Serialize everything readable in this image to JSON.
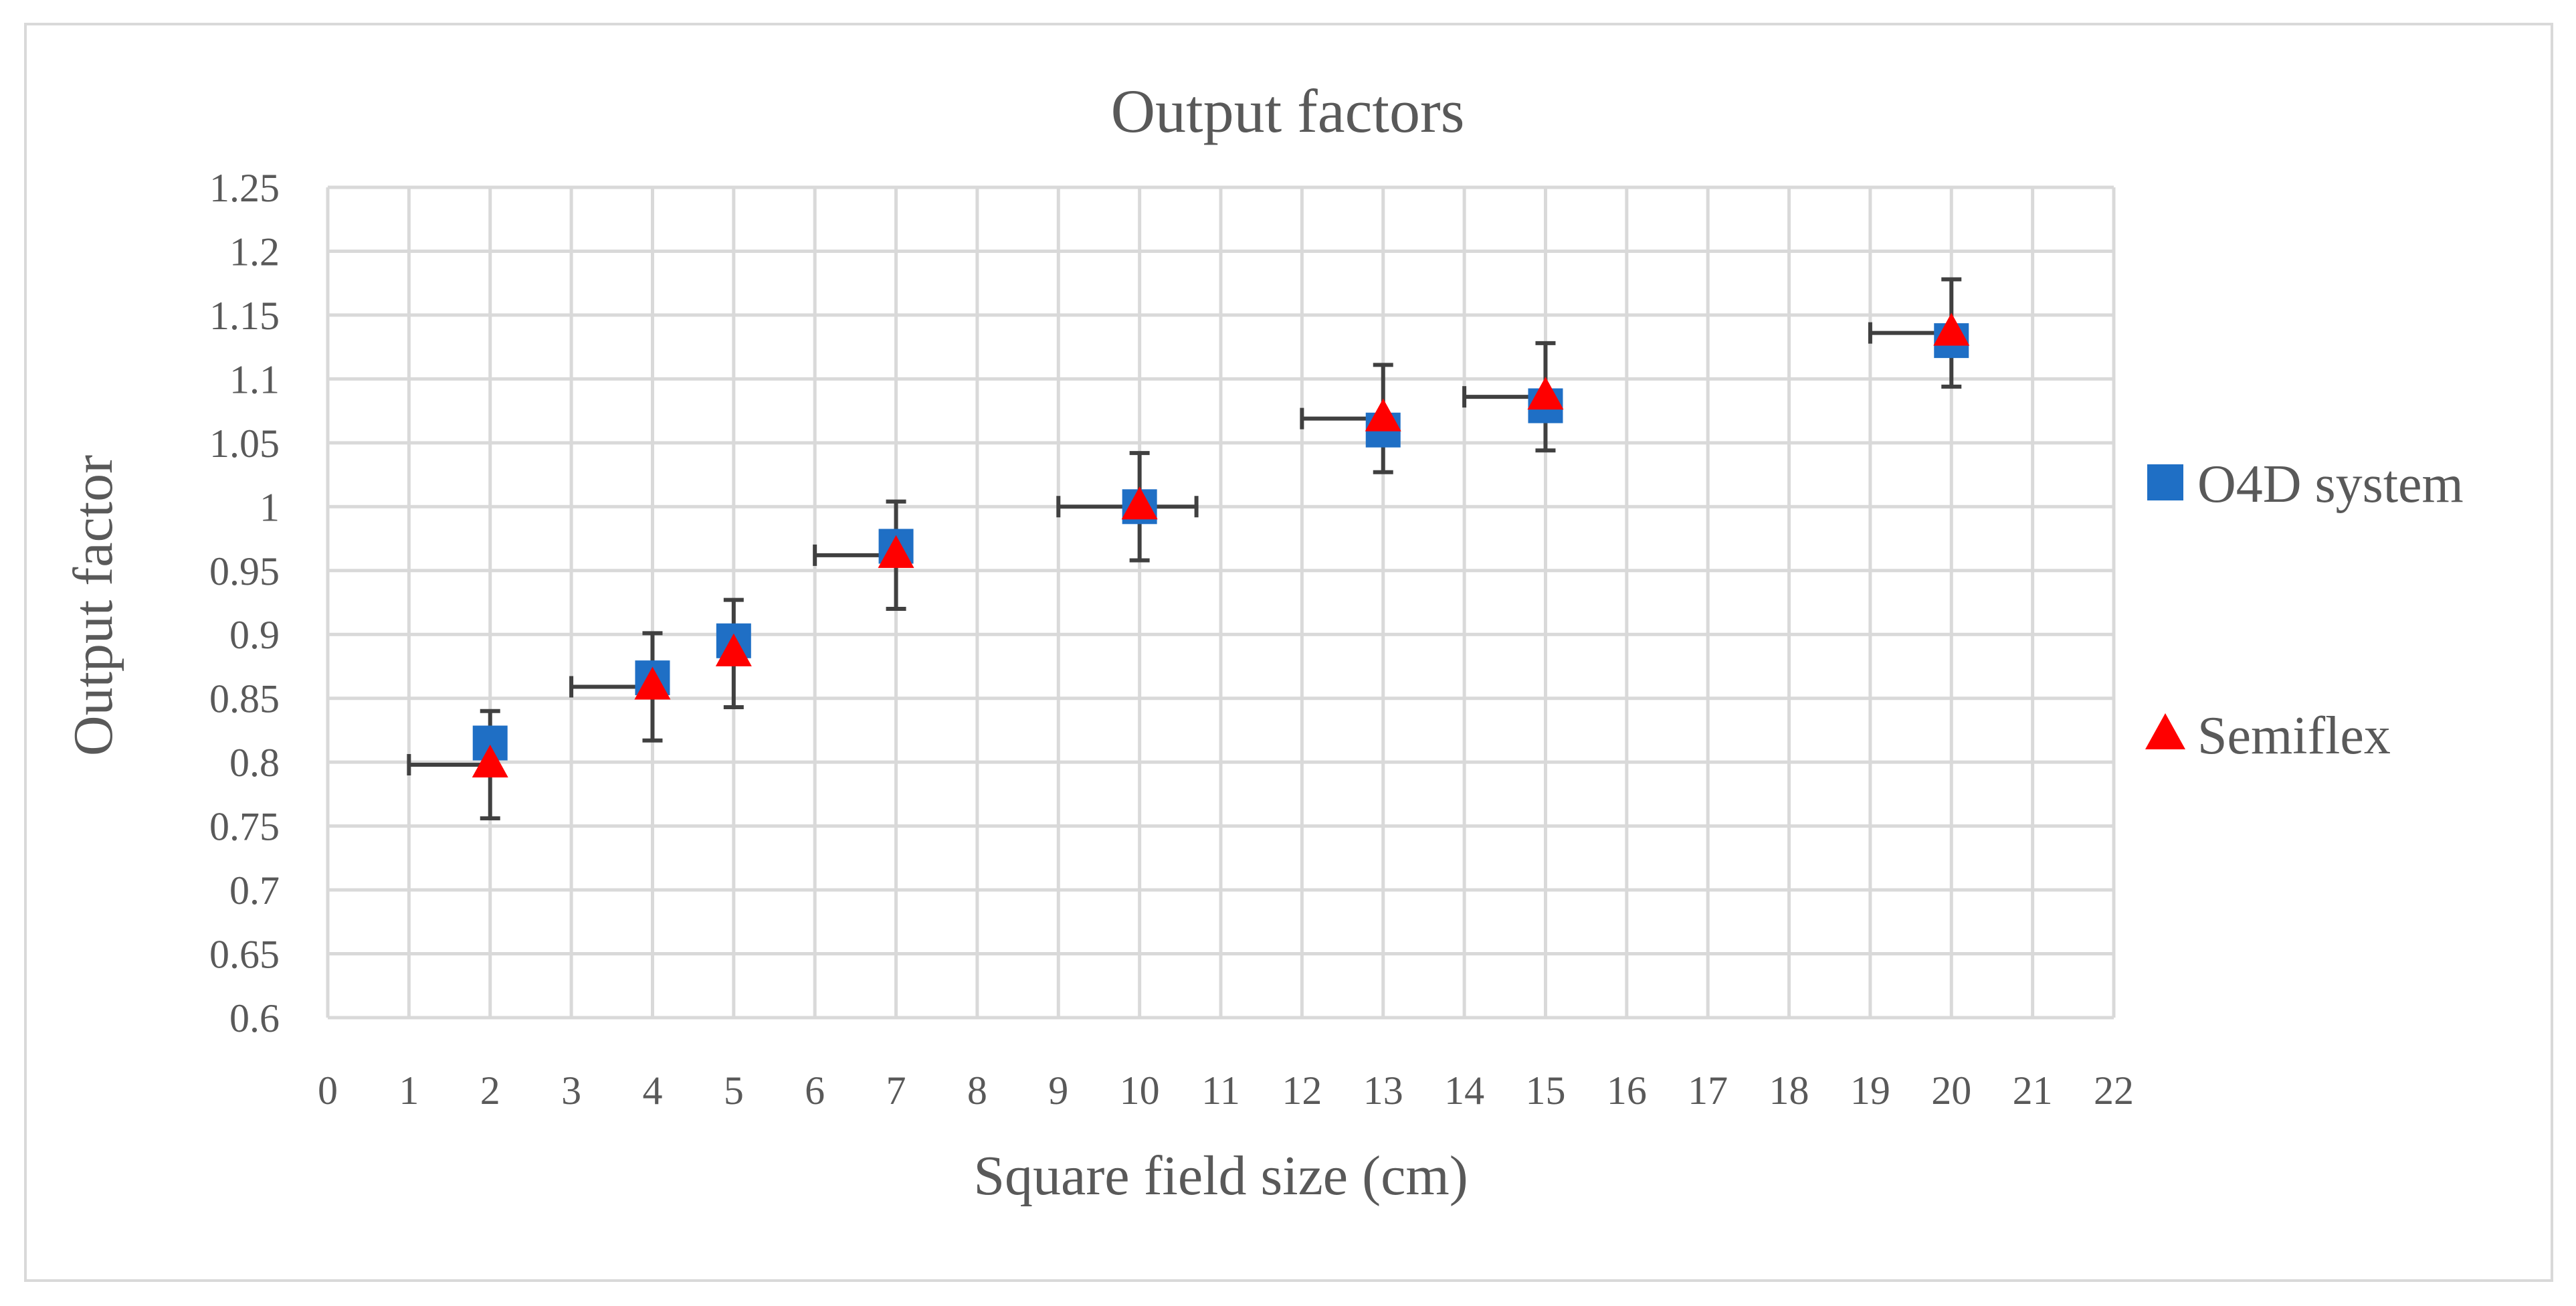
{
  "chart_data": {
    "type": "scatter",
    "title": "Output factors",
    "xlabel": "Square field size (cm)",
    "ylabel": "Output factor",
    "categories": [
      "0",
      "1",
      "2",
      "3",
      "4",
      "5",
      "6",
      "7",
      "8",
      "9",
      "10",
      "11",
      "12",
      "13",
      "14",
      "15",
      "16",
      "17",
      "18",
      "19",
      "20",
      "21",
      "22"
    ],
    "ylim": [
      0.6,
      1.25
    ],
    "y_ticks": [
      "0.6",
      "0.65",
      "0.7",
      "0.75",
      "0.8",
      "0.85",
      "0.9",
      "0.95",
      "1",
      "1.05",
      "1.1",
      "1.15",
      "1.2",
      "1.25"
    ],
    "grid": true,
    "legend_position": "right",
    "series": [
      {
        "name": "O4D system",
        "marker": "square",
        "color": "#1f6fc5",
        "x": [
          2,
          4,
          5,
          7,
          10,
          13,
          15,
          20
        ],
        "values": [
          0.815,
          0.866,
          0.895,
          0.969,
          1.0,
          1.06,
          1.079,
          1.13
        ]
      },
      {
        "name": "Semiflex",
        "marker": "triangle",
        "color": "#ff0000",
        "x": [
          2,
          4,
          5,
          7,
          10,
          13,
          15,
          20
        ],
        "values": [
          0.798,
          0.859,
          0.885,
          0.962,
          1.0,
          1.069,
          1.086,
          1.136
        ],
        "error_y": [
          0.042,
          0.042,
          0.042,
          0.042,
          0.042,
          0.042,
          0.042,
          0.042
        ],
        "error_x_minus": [
          1,
          1,
          0,
          1,
          1,
          1,
          1,
          1
        ],
        "error_x_plus": [
          0,
          0,
          0,
          0,
          0.7,
          0,
          0,
          0
        ]
      }
    ]
  }
}
